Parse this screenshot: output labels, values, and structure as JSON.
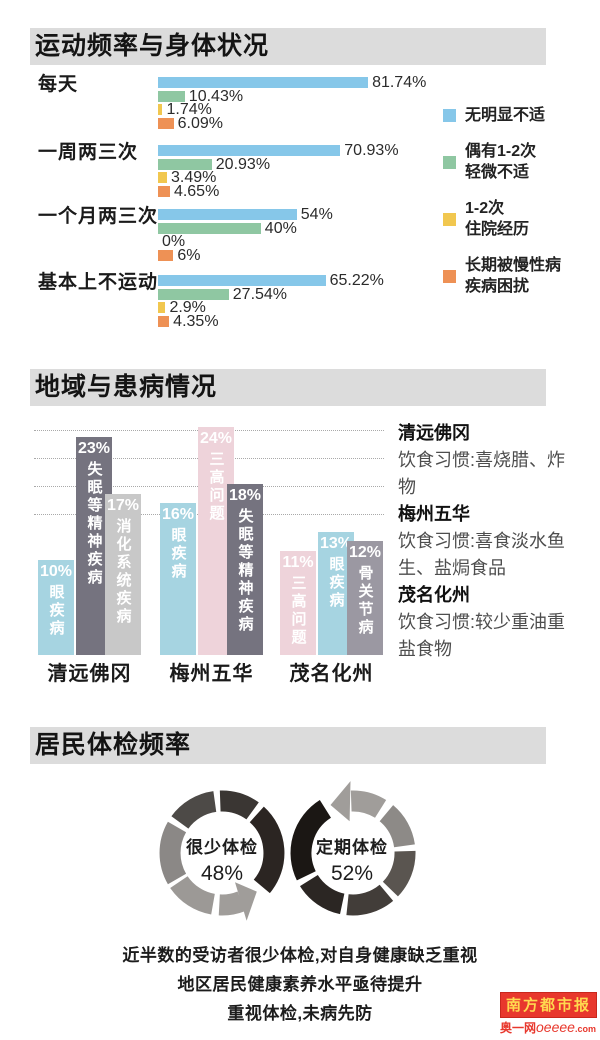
{
  "footer": {
    "brand": "南方都市报",
    "site_prefix": "奥一网",
    "site_name": "oeeee",
    "site_suffix": ".com"
  },
  "palette": {
    "section_header_bg": "#dcdcdc",
    "arrow_gray": "#a09d9a",
    "logo_red": "#e8382d",
    "logo_yellow": "#ffd94f"
  },
  "chart_data": [
    {
      "type": "bar",
      "orientation": "horizontal",
      "title": "运动频率与身体状况",
      "categories": [
        "每天",
        "一周两三次",
        "一个月两三次",
        "基本上不运动"
      ],
      "series": [
        {
          "key": "no-discomfort",
          "name": "无明显不适",
          "legend_lines": [
            "无明显不适"
          ],
          "color": "#86c7e9",
          "values": [
            81.74,
            70.93,
            54,
            65.22
          ],
          "value_labels": [
            "81.74%",
            "70.93%",
            "54%",
            "65.22%"
          ]
        },
        {
          "key": "occasional-mild-discomfort",
          "name": "偶有1-2次轻微不适",
          "legend_lines": [
            "偶有1-2次",
            "轻微不适"
          ],
          "color": "#8fc7a2",
          "values": [
            10.43,
            20.93,
            40,
            27.54
          ],
          "value_labels": [
            "10.43%",
            "20.93%",
            "40%",
            "27.54%"
          ]
        },
        {
          "key": "hospitalized-1-2-times",
          "name": "1-2次住院经历",
          "legend_lines": [
            "1-2次",
            "住院经历"
          ],
          "color": "#f1c74f",
          "values": [
            1.74,
            3.49,
            0,
            2.9
          ],
          "value_labels": [
            "1.74%",
            "3.49%",
            "0%",
            "2.9%"
          ]
        },
        {
          "key": "chronic-disease",
          "name": "长期被慢性病疾病困扰",
          "legend_lines": [
            "长期被慢性病",
            "疾病困扰"
          ],
          "color": "#ee9155",
          "values": [
            6.09,
            4.65,
            6,
            4.35
          ],
          "value_labels": [
            "6.09%",
            "4.65%",
            "6%",
            "4.35%"
          ]
        }
      ],
      "x_unit": "percent",
      "legend_position": "right"
    },
    {
      "type": "bar",
      "orientation": "vertical",
      "title": "地域与患病情况",
      "grid": "dotted",
      "groups": [
        {
          "region": "清远佛冈",
          "bars": [
            {
              "label": "眼疾病",
              "value": 10,
              "value_label": "10%",
              "color": "#a6d4e1"
            },
            {
              "label": "失眠等精神疾病",
              "value": 23,
              "value_label": "23%",
              "color": "#75737f"
            },
            {
              "label": "消化系统疾病",
              "value": 17,
              "value_label": "17%",
              "color": "#c8c8c8"
            }
          ]
        },
        {
          "region": "梅州五华",
          "bars": [
            {
              "label": "眼疾病",
              "value": 16,
              "value_label": "16%",
              "color": "#a6d4e1"
            },
            {
              "label": "三高问题",
              "value": 24,
              "value_label": "24%",
              "color": "#eed3da"
            },
            {
              "label": "失眠等精神疾病",
              "value": 18,
              "value_label": "18%",
              "color": "#75737f"
            }
          ]
        },
        {
          "region": "茂名化州",
          "bars": [
            {
              "label": "三高问题",
              "value": 11,
              "value_label": "11%",
              "color": "#eed3da"
            },
            {
              "label": "眼疾病",
              "value": 13,
              "value_label": "13%",
              "color": "#a6d4e1"
            },
            {
              "label": "骨关节病",
              "value": 12,
              "value_label": "12%",
              "color": "#9b98a2"
            }
          ]
        }
      ],
      "notes": [
        {
          "region": "清远佛冈",
          "text": "饮食习惯:喜烧腊、炸物"
        },
        {
          "region": "梅州五华",
          "text": "饮食习惯:喜食淡水鱼生、盐焗食品"
        },
        {
          "region": "茂名化州",
          "text": "饮食习惯:较少重油重盐食物"
        }
      ],
      "y_unit": "percent"
    },
    {
      "type": "pie",
      "title": "居民体检频率",
      "slices": [
        {
          "label": "很少体检",
          "value": 48,
          "value_label": "48%"
        },
        {
          "label": "定期体检",
          "value": 52,
          "value_label": "52%"
        }
      ],
      "ring_colors_left": [
        "#8b8886",
        "#4d4a47",
        "#3a3633",
        "#2b2522",
        "#9c9996"
      ],
      "ring_colors_right": [
        "#8d8a87",
        "#5a5550",
        "#423d39",
        "#2b2623",
        "#1b1714"
      ],
      "captions": [
        "近半数的受访者很少体检,对自身健康缺乏重视",
        "地区居民健康素养水平亟待提升",
        "重视体检,未病先防"
      ]
    }
  ]
}
